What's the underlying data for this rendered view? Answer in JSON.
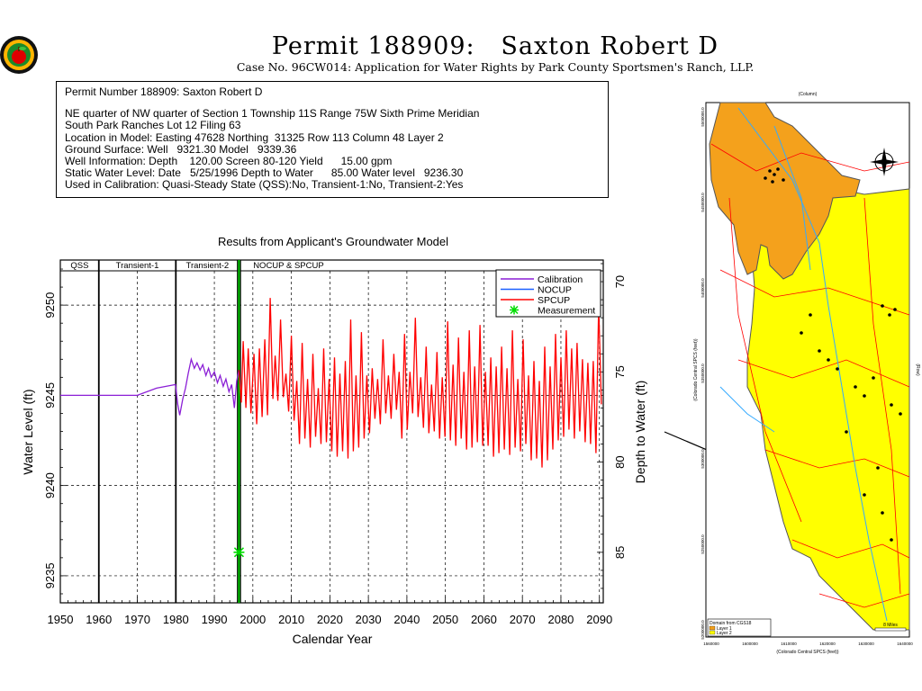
{
  "header": {
    "title": "Permit 188909:   Saxton Robert D",
    "subtitle": "Case No. 96CW014: Application for Water Rights by Park County Sportsmen's Ranch, LLP."
  },
  "info": {
    "line1": "Permit Number 188909: Saxton Robert D",
    "line2": "NE quarter of NW quarter of Section 1 Township 11S Range 75W Sixth Prime Meridian",
    "line3": "South Park Ranches Lot 12 Filing 63",
    "line4": "Location in Model: Easting 47628 Northing  31325 Row 113 Column 48 Layer 2",
    "line5": "Ground Surface: Well   9321.30 Model   9339.36",
    "line6": "Well Information: Depth    120.00 Screen 80-120 Yield      15.00 gpm",
    "line7": "Static Water Level: Date   5/25/1996 Depth to Water      85.00 Water level   9236.30",
    "line8": "Used in Calibration: Quasi-Steady State (QSS):No, Transient-1:No, Transient-2:Yes"
  },
  "chart_data": {
    "type": "line",
    "title": "Results from Applicant's Groundwater Model",
    "xlabel": "Calendar Year",
    "ylabel": "Water Level (ft)",
    "y2label": "Depth to Water (ft)",
    "xlim": [
      1950,
      2091
    ],
    "ylim": [
      9233.5,
      9252.5
    ],
    "y2lim": [
      87.8,
      68.8
    ],
    "xticks": [
      "1950",
      "1960",
      "1970",
      "1980",
      "1990",
      "2000",
      "2010",
      "2020",
      "2030",
      "2040",
      "2050",
      "2060",
      "2070",
      "2080",
      "2090"
    ],
    "yticks": [
      "9235",
      "9240",
      "9245",
      "9250"
    ],
    "y2ticks": [
      "70",
      "75",
      "80",
      "85"
    ],
    "periods": [
      {
        "label": "QSS",
        "start": 1950,
        "end": 1960
      },
      {
        "label": "Transient-1",
        "start": 1960,
        "end": 1980
      },
      {
        "label": "Transient-2",
        "start": 1980,
        "end": 1996.4
      },
      {
        "label": "NOCUP  &  SPCUP",
        "start": 1996.4,
        "end": 2091
      }
    ],
    "legend": {
      "position": "top-right",
      "entries": [
        {
          "name": "Calibration",
          "color": "#8b1fd6"
        },
        {
          "name": "NOCUP",
          "color": "#1a5fff"
        },
        {
          "name": "SPCUP",
          "color": "#ff0000"
        },
        {
          "name": "Measurement",
          "color": "#00dd00"
        }
      ]
    },
    "series": [
      {
        "name": "Calibration",
        "color": "#8b1fd6",
        "x": [
          1950,
          1960,
          1970,
          1975,
          1979.9,
          1980.5,
          1981,
          1981.8,
          1982.5,
          1983.2,
          1984,
          1984.8,
          1985.5,
          1986.3,
          1987,
          1987.8,
          1988.5,
          1989.2,
          1990,
          1990.8,
          1991.5,
          1992.3,
          1993,
          1993.8,
          1994.5,
          1995.2,
          1995.8,
          1996.4
        ],
        "y": [
          9245.0,
          9245.0,
          9245.0,
          9245.4,
          9245.6,
          9244.5,
          9243.9,
          9244.8,
          9245.4,
          9246.2,
          9247.0,
          9246.5,
          9246.8,
          9246.4,
          9246.7,
          9246.1,
          9246.5,
          9246.0,
          9246.3,
          9245.7,
          9246.1,
          9245.5,
          9245.9,
          9245.2,
          9245.6,
          9244.3,
          9245.8,
          9246.4
        ]
      },
      {
        "name": "NOCUP",
        "color": "#1a5fff",
        "x": [
          1996.4,
          2091
        ],
        "y": [
          9246.4,
          9246.4
        ]
      },
      {
        "name": "SPCUP",
        "color": "#ff0000",
        "x": [
          1996.4,
          1997.0,
          1997.5,
          1998.2,
          1998.8,
          1999.5,
          2000.3,
          2001.0,
          2001.7,
          2002.4,
          2003.1,
          2003.8,
          2004.5,
          2005.2,
          2005.8,
          2006.5,
          2007.2,
          2007.9,
          2008.6,
          2009.3,
          2010.0,
          2010.7,
          2011.4,
          2012.1,
          2012.8,
          2013.5,
          2014.2,
          2014.9,
          2015.6,
          2016.3,
          2017.0,
          2017.7,
          2018.4,
          2019.1,
          2019.8,
          2020.5,
          2021.2,
          2021.9,
          2022.6,
          2023.3,
          2024.0,
          2024.7,
          2025.4,
          2026.1,
          2026.8,
          2027.5,
          2028.2,
          2028.9,
          2029.6,
          2030.3,
          2031.0,
          2031.7,
          2032.4,
          2033.1,
          2033.8,
          2034.5,
          2035.2,
          2035.9,
          2036.6,
          2037.3,
          2038.0,
          2038.7,
          2039.4,
          2040.1,
          2040.8,
          2041.5,
          2042.2,
          2042.9,
          2043.6,
          2044.3,
          2045.0,
          2045.7,
          2046.4,
          2047.1,
          2047.8,
          2048.5,
          2049.2,
          2049.9,
          2050.6,
          2051.3,
          2052.0,
          2052.7,
          2053.4,
          2054.1,
          2054.8,
          2055.5,
          2056.2,
          2056.9,
          2057.6,
          2058.3,
          2059.0,
          2059.7,
          2060.4,
          2061.1,
          2061.8,
          2062.5,
          2063.2,
          2063.9,
          2064.6,
          2065.3,
          2066.0,
          2066.7,
          2067.4,
          2068.1,
          2068.8,
          2069.5,
          2070.2,
          2070.9,
          2071.6,
          2072.3,
          2073.0,
          2073.7,
          2074.4,
          2075.1,
          2075.8,
          2076.5,
          2077.2,
          2077.9,
          2078.6,
          2079.3,
          2080.0,
          2080.7,
          2081.4,
          2082.1,
          2082.8,
          2083.5,
          2084.2,
          2084.9,
          2085.6,
          2086.3,
          2087.0,
          2087.7,
          2088.4,
          2089.1,
          2089.8,
          2090.5
        ],
        "y": [
          9246.4,
          9244.6,
          9248.0,
          9244.3,
          9247.6,
          9244.0,
          9247.3,
          9243.4,
          9247.6,
          9243.8,
          9248.1,
          9243.9,
          9250.4,
          9244.8,
          9247.2,
          9244.7,
          9249.2,
          9244.9,
          9246.2,
          9244.1,
          9248.3,
          9243.6,
          9245.8,
          9242.3,
          9247.9,
          9242.6,
          9245.9,
          9242.1,
          9247.3,
          9242.7,
          9245.4,
          9242.3,
          9247.6,
          9242.4,
          9245.9,
          9241.9,
          9247.1,
          9241.6,
          9246.2,
          9241.9,
          9246.9,
          9241.5,
          9249.2,
          9241.9,
          9246.1,
          9242.1,
          9248.5,
          9242.6,
          9246.1,
          9242.9,
          9246.5,
          9243.7,
          9245.9,
          9243.4,
          9248.1,
          9244.0,
          9246.1,
          9243.7,
          9247.3,
          9244.2,
          9246.3,
          9242.6,
          9248.4,
          9243.1,
          9246.3,
          9244.0,
          9249.3,
          9243.8,
          9246.0,
          9243.2,
          9247.7,
          9242.9,
          9245.6,
          9243.0,
          9247.4,
          9242.6,
          9246.0,
          9242.7,
          9249.1,
          9242.5,
          9246.7,
          9242.2,
          9248.2,
          9242.6,
          9246.3,
          9242.0,
          9248.6,
          9242.1,
          9246.6,
          9242.4,
          9248.9,
          9242.2,
          9246.3,
          9242.2,
          9247.1,
          9241.6,
          9246.6,
          9241.8,
          9247.7,
          9242.0,
          9246.5,
          9241.7,
          9248.6,
          9242.1,
          9245.9,
          9241.9,
          9248.1,
          9242.3,
          9246.1,
          9241.4,
          9246.9,
          9241.5,
          9245.8,
          9241.0,
          9247.7,
          9241.4,
          9246.6,
          9242.0,
          9248.4,
          9242.5,
          9247.1,
          9242.7,
          9248.6,
          9243.1,
          9247.6,
          9242.6,
          9247.9,
          9243.0,
          9247.0,
          9242.4,
          9246.8,
          9242.3,
          9246.9,
          9241.8,
          9250.0,
          9244.5
        ]
      }
    ],
    "measurements": [
      {
        "name": "Measurement",
        "x": 1996.4,
        "y": 9236.3
      }
    ],
    "vlines": [
      1960,
      1980
    ],
    "current_line": 1996.4,
    "hgrid": [
      9235,
      9240,
      9245,
      9250
    ],
    "vgrid": [
      1950,
      1960,
      1970,
      1980,
      1990,
      2000,
      2010,
      2020,
      2030,
      2040,
      2050,
      2060,
      2070,
      2080,
      2090
    ]
  },
  "map": {
    "north_label": "N",
    "top_axis_title": "(Column)",
    "left_axis_title": "(Colorado Central SPCS (feet))",
    "bottom_axis_title": "(Colorado Central SPCS (feet))",
    "right_axis_title": "(Row)",
    "legend_title": "Domain from CGS18",
    "legend_items": [
      "Layer 1",
      "Layer 2"
    ],
    "scale_label": "8 Miles",
    "bottom_ticks": [
      "1560000",
      "1600000",
      "1610000",
      "1620000",
      "1630000",
      "1640000"
    ],
    "left_ticks": [
      "5500000.0",
      "5450000.0",
      "5400000.0",
      "5350000.0",
      "5300000.0",
      "5250000.0",
      "5200000.0"
    ],
    "colors": {
      "layer1": "#f4a11c",
      "layer2": "#ffff00",
      "rivers": "#33aaff",
      "roads": "#ff0000"
    }
  }
}
